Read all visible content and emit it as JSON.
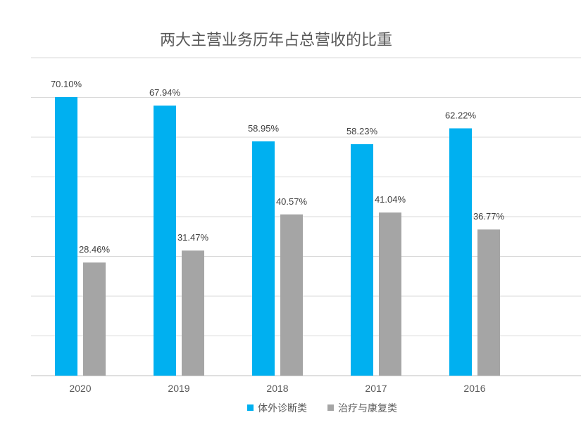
{
  "chart_data": {
    "type": "bar",
    "title": "两大主营业务历年占总营收的比重",
    "categories": [
      "2020",
      "2019",
      "2018",
      "2017",
      "2016"
    ],
    "series": [
      {
        "name": "体外诊断类",
        "color": "#00B0F0",
        "values": [
          70.1,
          67.94,
          58.95,
          58.23,
          62.22
        ],
        "labels": [
          "70.10%",
          "67.94%",
          "58.95%",
          "58.23%",
          "62.22%"
        ]
      },
      {
        "name": "治疗与康复类",
        "color": "#A5A5A5",
        "values": [
          28.46,
          31.47,
          40.57,
          41.04,
          36.77
        ],
        "labels": [
          "28.46%",
          "31.47%",
          "40.57%",
          "41.04%",
          "36.77%"
        ]
      }
    ],
    "ylim": [
      0,
      80
    ],
    "grid": true,
    "legend_position": "bottom"
  }
}
